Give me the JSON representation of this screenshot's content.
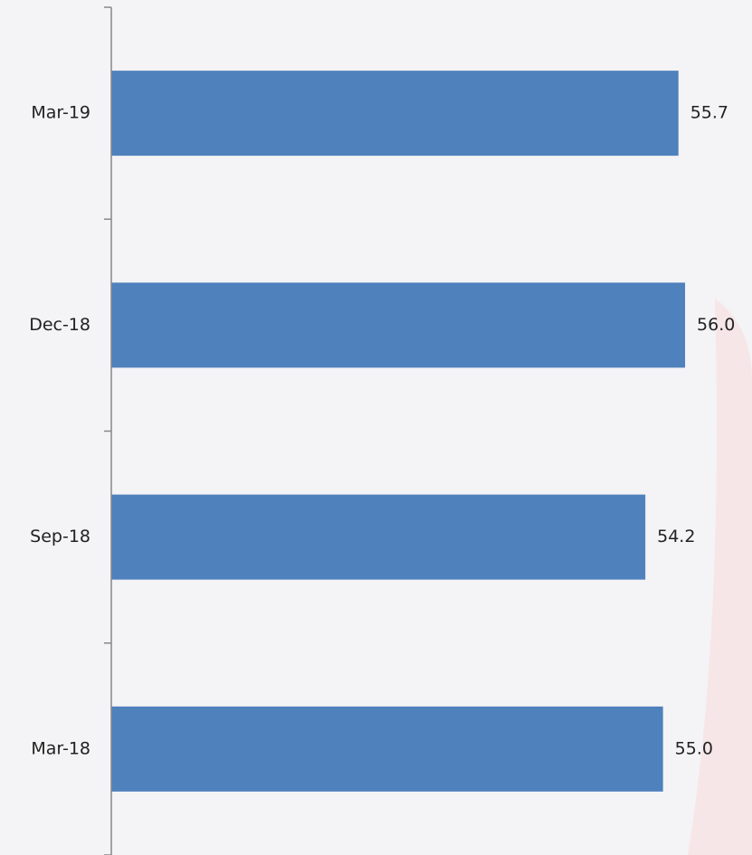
{
  "chart_data": {
    "type": "bar",
    "orientation": "horizontal",
    "categories": [
      "Mar-19",
      "Dec-18",
      "Sep-18",
      "Mar-18"
    ],
    "values": [
      55.7,
      56.0,
      54.2,
      55.0
    ],
    "value_labels": [
      "55.7",
      "56.0",
      "54.2",
      "55.0"
    ],
    "color": "#4f81bd",
    "xlim": [
      30,
      58.5
    ]
  }
}
